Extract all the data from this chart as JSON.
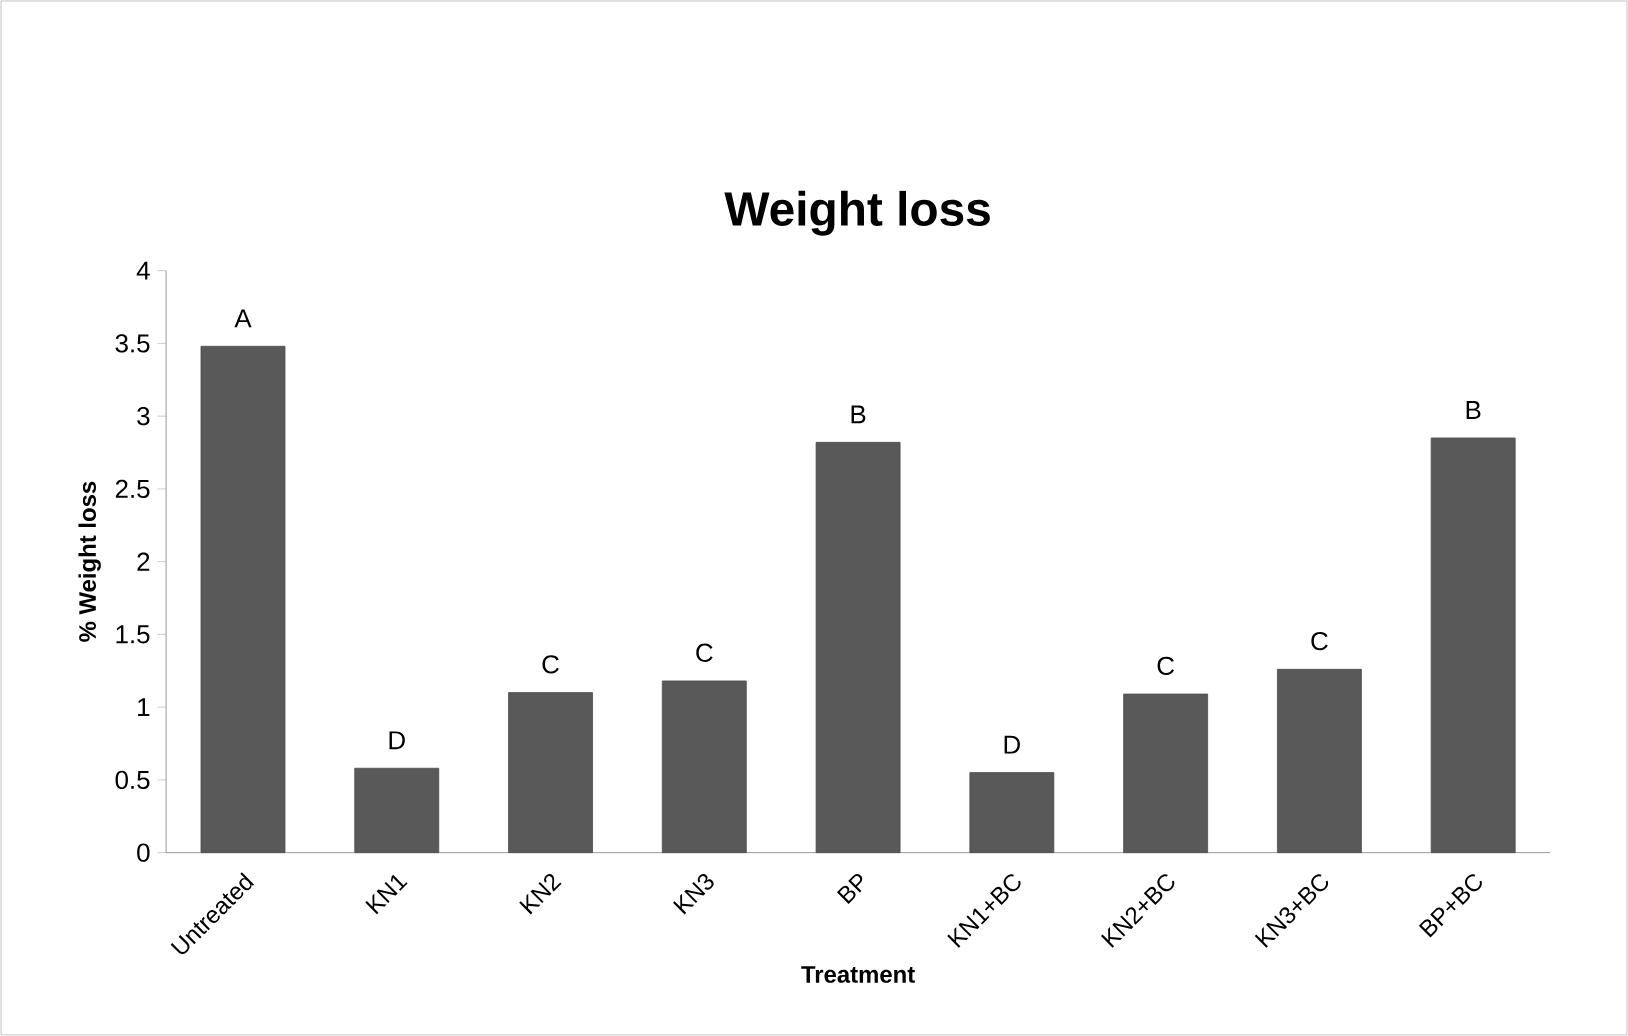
{
  "chart_data": {
    "type": "bar",
    "title": "Weight loss",
    "xlabel": "Treatment",
    "ylabel": "% Weight loss",
    "categories": [
      "Untreated",
      "KN1",
      "KN2",
      "KN3",
      "BP",
      "KN1+BC",
      "KN2+BC",
      "KN3+BC",
      "BP+BC"
    ],
    "values": [
      3.48,
      0.58,
      1.1,
      1.18,
      2.82,
      0.55,
      1.09,
      1.26,
      2.85
    ],
    "color": "#595959",
    "ylim": [
      0,
      4
    ],
    "yticks": [
      0,
      0.5,
      1,
      1.5,
      2,
      2.5,
      3,
      3.5,
      4
    ],
    "grid": false,
    "annotations": [
      {
        "text": "A",
        "x": "Untreated",
        "y": 3.48
      },
      {
        "text": "D",
        "x": "KN1",
        "y": 0.58
      },
      {
        "text": "C",
        "x": "KN2",
        "y": 1.1
      },
      {
        "text": "C",
        "x": "KN3",
        "y": 1.18
      },
      {
        "text": "B",
        "x": "BP",
        "y": 2.82
      },
      {
        "text": "D",
        "x": "KN1+BC",
        "y": 0.55
      },
      {
        "text": "C",
        "x": "KN2+BC",
        "y": 1.09
      },
      {
        "text": "C",
        "x": "KN3+BC",
        "y": 1.26
      },
      {
        "text": "B",
        "x": "BP+BC",
        "y": 2.85
      }
    ]
  }
}
